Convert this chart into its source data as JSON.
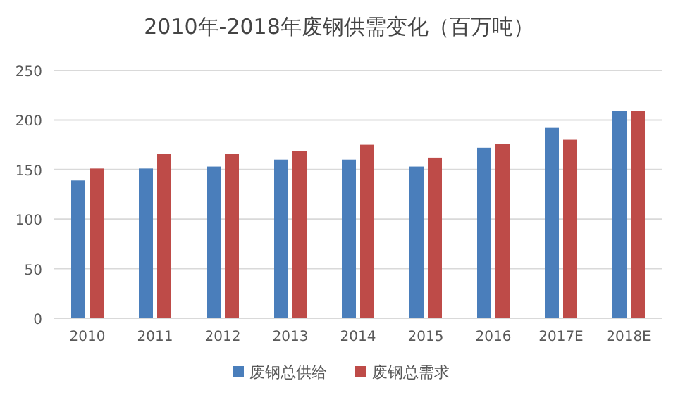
{
  "chart_data": {
    "type": "bar",
    "title": "2010年-2018年废钢供需变化（百万吨）",
    "categories": [
      "2010",
      "2011",
      "2012",
      "2013",
      "2014",
      "2015",
      "2016",
      "2017E",
      "2018E"
    ],
    "series": [
      {
        "name": "废钢总供给",
        "color": "#4a7ebb",
        "values": [
          139,
          151,
          153,
          160,
          160,
          153,
          172,
          192,
          209
        ]
      },
      {
        "name": "废钢总需求",
        "color": "#be4b48",
        "values": [
          151,
          166,
          166,
          169,
          175,
          162,
          176,
          180,
          209
        ]
      }
    ],
    "ylim": [
      0,
      250
    ],
    "yticks": [
      0,
      50,
      100,
      150,
      200,
      250
    ],
    "grid": "y",
    "legend": "bottom"
  }
}
